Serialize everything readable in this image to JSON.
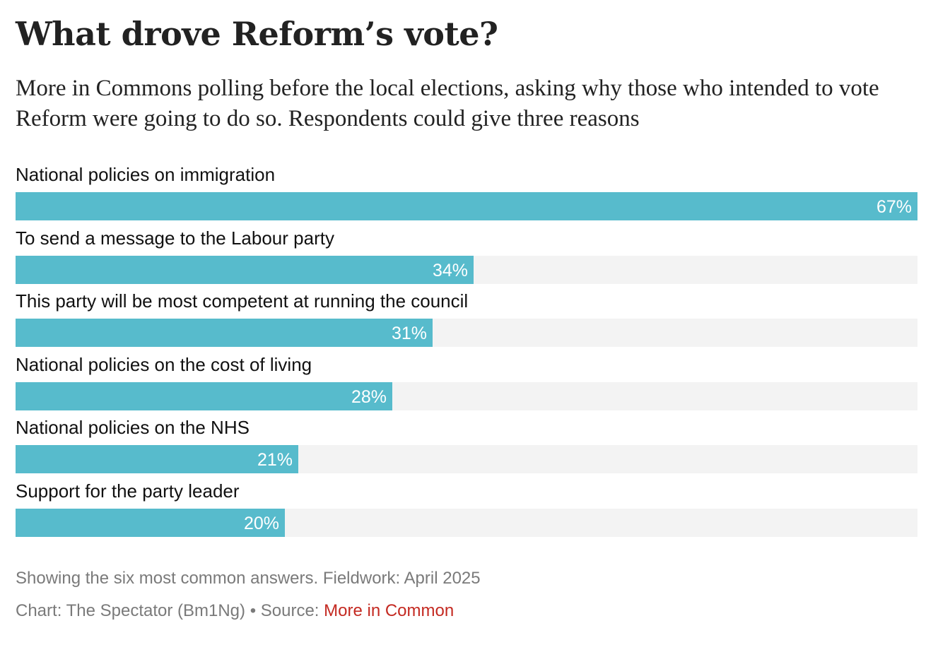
{
  "header": {
    "title": "What drove Reform’s vote?",
    "subtitle": "More in Commons polling before the local elections, asking why those who intended to vote Reform were going to do so. Respondents could give three reasons"
  },
  "chart_data": {
    "type": "bar",
    "orientation": "horizontal",
    "categories": [
      "National policies on immigration",
      "To send a message to the Labour party",
      "This party will be most competent at running the council",
      "National policies on the cost of living",
      "National policies on the NHS",
      "Support for the party leader"
    ],
    "values": [
      67,
      34,
      31,
      28,
      21,
      20
    ],
    "value_labels": [
      "67%",
      "34%",
      "31%",
      "28%",
      "21%",
      "20%"
    ],
    "unit": "%",
    "xlim": [
      0,
      67
    ],
    "bar_color": "#57bbcc",
    "track_color": "#f3f3f3",
    "grid": false,
    "legend": "none"
  },
  "footer": {
    "note": "Showing the six most common answers. Fieldwork: April 2025",
    "credit_prefix": "Chart: The Spectator (Bm1Ng) • Source: ",
    "source_name": "More in Common",
    "source_color": "#c42a22"
  }
}
